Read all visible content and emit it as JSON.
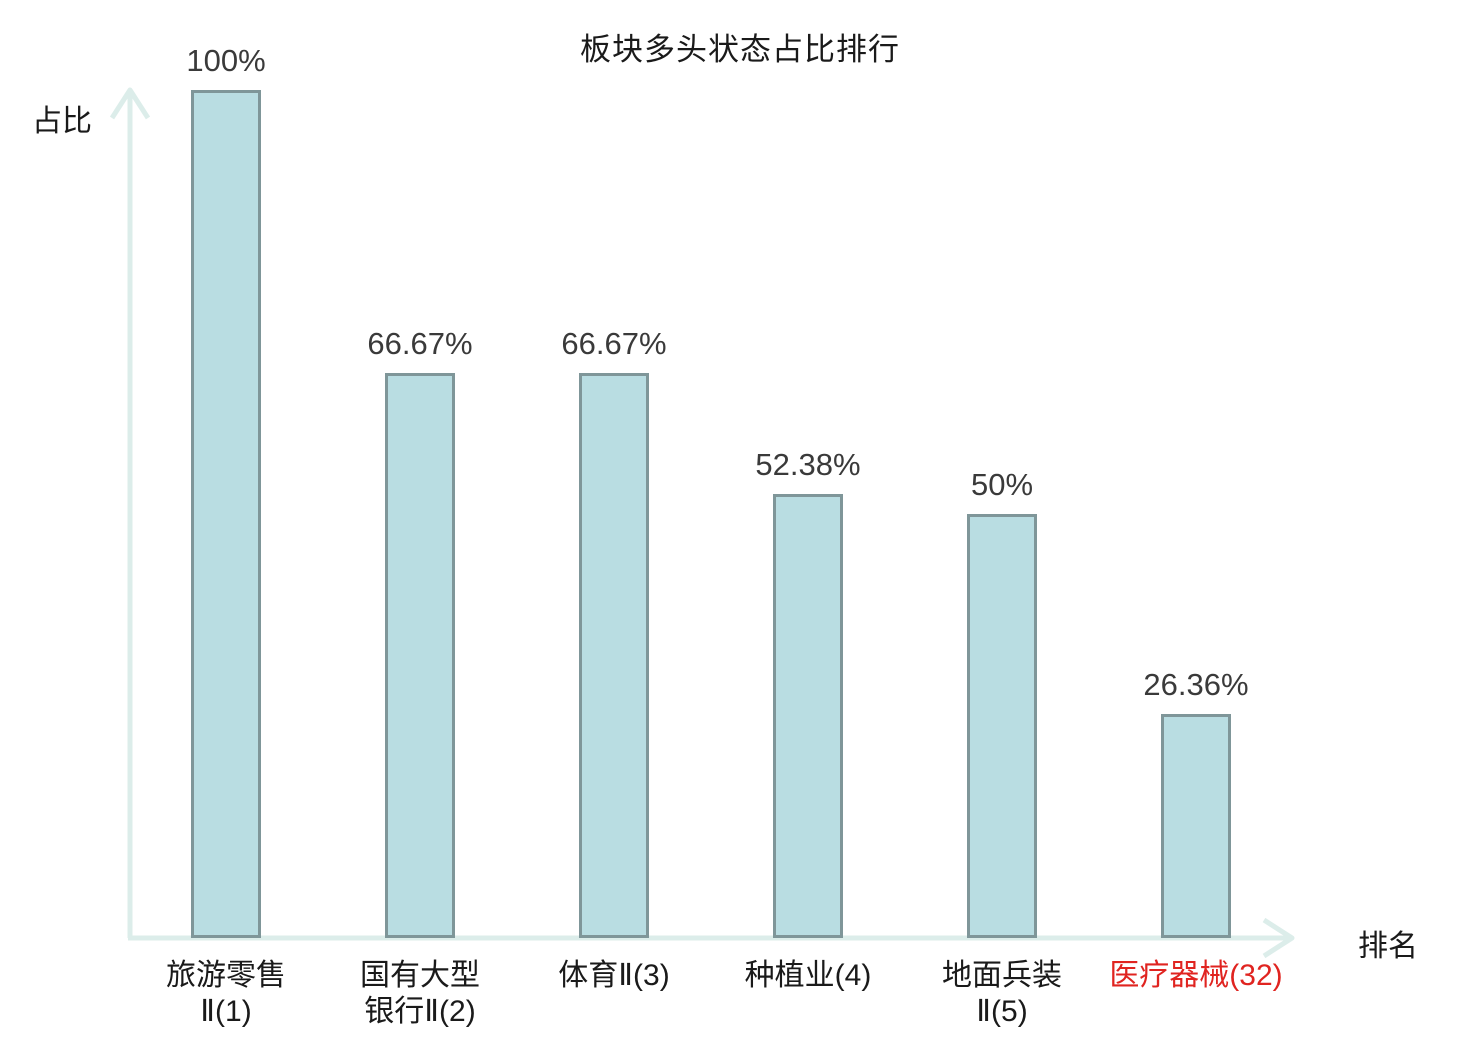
{
  "chart_data": {
    "type": "bar",
    "title": "板块多头状态占比排行",
    "xlabel": "排名",
    "ylabel": "占比",
    "categories": [
      "旅游零售Ⅱ(1)",
      "国有大型银行Ⅱ(2)",
      "体育Ⅱ(3)",
      "种植业(4)",
      "地面兵装Ⅱ(5)",
      "医疗器械(32)"
    ],
    "values": [
      100,
      66.67,
      66.67,
      52.38,
      50,
      26.36
    ],
    "value_labels": [
      "100%",
      "66.67%",
      "66.67%",
      "52.38%",
      "50%",
      "26.36%"
    ],
    "category_label_lines": [
      [
        "旅游零售",
        "Ⅱ(1)"
      ],
      [
        "国有大型",
        "银行Ⅱ(2)"
      ],
      [
        "体育Ⅱ(3)"
      ],
      [
        "种植业(4)"
      ],
      [
        "地面兵装",
        "Ⅱ(5)"
      ],
      [
        "医疗器械(32)"
      ]
    ],
    "highlight_index": 5,
    "ylim": [
      0,
      100
    ],
    "grid": false,
    "legend_position": "none",
    "colors": {
      "bar_fill": "#b9dde2",
      "bar_border": "#7f9699",
      "axis": "#dcedea",
      "value_label": "#3a3a3a",
      "category_label": "#1a1a1a",
      "highlight": "#e02420",
      "title": "#1a1a1a"
    }
  }
}
